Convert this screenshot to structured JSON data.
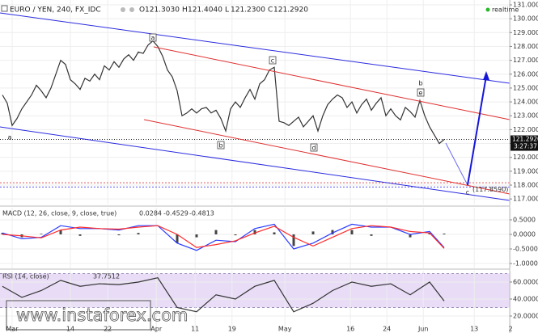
{
  "header": {
    "symbol": "EURO / YEN, 240, FX_IDC",
    "ohlc": [
      {
        "key": "O",
        "value": "121.3030"
      },
      {
        "key": "H",
        "value": "121.4040"
      },
      {
        "key": "L",
        "value": "121.2300"
      },
      {
        "key": "C",
        "value": "121.2920"
      }
    ],
    "realtime": "realtime",
    "countdown": "3:27:37",
    "watermark": "www.instaforex.com"
  },
  "waves": [
    "a",
    "a",
    "b",
    "c",
    "d",
    "b",
    "e",
    "c"
  ],
  "chart_data": [
    {
      "type": "line",
      "xlim": [
        0,
        105
      ],
      "ylim": [
        116.6,
        131.35
      ],
      "grid": true,
      "yticks": [
        {
          "value": 117,
          "label": "117.0000"
        },
        {
          "value": 118,
          "label": "118.0000"
        },
        {
          "value": 119,
          "label": "119.0000"
        },
        {
          "value": 120,
          "label": "120.0000"
        },
        {
          "value": 121,
          "label": "121.0000"
        },
        {
          "value": 122,
          "label": "122.0000"
        },
        {
          "value": 123,
          "label": "123.0000"
        },
        {
          "value": 124,
          "label": "124.0000"
        },
        {
          "value": 125,
          "label": "125.0000"
        },
        {
          "value": 126,
          "label": "126.0000"
        },
        {
          "value": 127,
          "label": "127.0000"
        },
        {
          "value": 128,
          "label": "128.0000"
        },
        {
          "value": 129,
          "label": "129.0000"
        },
        {
          "value": 130,
          "label": "130.0000"
        },
        {
          "value": 131,
          "label": "131.0000"
        }
      ],
      "series": [
        {
          "color": "#333333",
          "values": [
            124.5,
            123.9,
            122.3,
            122.8,
            123.5,
            124.0,
            124.5,
            125.2,
            124.8,
            124.3,
            125.0,
            126.0,
            127.0,
            126.7,
            125.6,
            125.3,
            124.9,
            125.7,
            125.5,
            126.0,
            125.6,
            126.6,
            126.3,
            126.9,
            126.5,
            127.1,
            127.4,
            127.0,
            127.6,
            127.5,
            128.1,
            128.4,
            128.0,
            127.3,
            126.3,
            125.8,
            124.8,
            123.0,
            123.2,
            123.5,
            123.2,
            123.5,
            123.6,
            123.2,
            123.4,
            122.8,
            121.9,
            123.5,
            124.0,
            123.6,
            124.3,
            124.9,
            124.2,
            125.3,
            125.6,
            126.3,
            126.5,
            122.6,
            122.5,
            122.3,
            122.6,
            122.9,
            122.2,
            122.6,
            123.0,
            121.9,
            123.0,
            123.8,
            124.2,
            124.5,
            124.3,
            123.6,
            124.0,
            123.2,
            123.8,
            124.2,
            123.4,
            123.9,
            124.3,
            123.0,
            123.5,
            123.0,
            122.7,
            123.6,
            123.3,
            122.9,
            124.1,
            123.0,
            122.2,
            121.6,
            121.0,
            121.292
          ]
        }
      ],
      "target": {
        "value": 117.859,
        "label": "(117.8590)",
        "color": "#5555ee"
      },
      "support_level": {
        "value": 118.17,
        "color": "#e05555"
      }
    },
    {
      "type": "line",
      "title": "MACD (12, 26, close, 9, close, true)",
      "xlim": [
        0,
        105
      ],
      "ylim": [
        -1.167,
        0.917
      ],
      "grid": true,
      "yticks": [
        {
          "value": -1,
          "label": "-1.0000"
        },
        {
          "value": -0.5,
          "label": "-0.5000"
        },
        {
          "value": 0,
          "label": "0.0000"
        },
        {
          "value": 0.5,
          "label": "0.5000"
        }
      ],
      "x": [
        0,
        4,
        8,
        12,
        16,
        20,
        24,
        28,
        32,
        36,
        40,
        44,
        48,
        52,
        56,
        60,
        64,
        68,
        72,
        76,
        80,
        84,
        88,
        91
      ],
      "histogram": {
        "color": "#444444",
        "values": [
          0.05,
          -0.1,
          0.02,
          0.15,
          -0.05,
          0.0,
          -0.03,
          0.05,
          0.0,
          -0.3,
          -0.1,
          0.15,
          -0.03,
          0.15,
          0.07,
          -0.4,
          0.1,
          0.15,
          0.15,
          -0.05,
          0.0,
          -0.1,
          0.05,
          0.0284
        ]
      },
      "series": [
        {
          "color": "#2b3cff",
          "values": [
            0.05,
            -0.15,
            -0.1,
            0.3,
            0.2,
            0.2,
            0.15,
            0.3,
            0.3,
            -0.3,
            -0.55,
            -0.2,
            -0.25,
            0.2,
            0.35,
            -0.5,
            -0.3,
            0.05,
            0.35,
            0.25,
            0.25,
            0.0,
            0.1,
            -0.4529
          ]
        },
        {
          "color": "#ff2b2b",
          "values": [
            0.0,
            -0.05,
            -0.12,
            0.15,
            0.25,
            0.2,
            0.18,
            0.25,
            0.3,
            0.0,
            -0.45,
            -0.35,
            -0.22,
            0.05,
            0.28,
            -0.1,
            -0.4,
            -0.1,
            0.2,
            0.3,
            0.25,
            0.1,
            0.05,
            -0.4813
          ]
        }
      ]
    },
    {
      "type": "line",
      "title": "RSI (14, close)",
      "xlim": [
        0,
        105
      ],
      "ylim": [
        0,
        73.3
      ],
      "grid": true,
      "bands": [
        30,
        70
      ],
      "yticks": [
        {
          "value": 20,
          "label": "20.0000"
        },
        {
          "value": 40,
          "label": "40.0000"
        },
        {
          "value": 60,
          "label": "60.0000"
        }
      ],
      "x": [
        0,
        4,
        8,
        12,
        16,
        20,
        24,
        28,
        32,
        36,
        40,
        44,
        48,
        52,
        56,
        60,
        64,
        68,
        72,
        76,
        80,
        84,
        88,
        91
      ],
      "series": [
        {
          "color": "#333333",
          "values": [
            55,
            42,
            50,
            62,
            55,
            58,
            57,
            60,
            65,
            30,
            25,
            45,
            40,
            55,
            62,
            25,
            35,
            50,
            60,
            55,
            58,
            45,
            60,
            37.7512
          ]
        }
      ],
      "xticks": [
        {
          "value": 2,
          "label": "Mar"
        },
        {
          "value": 14,
          "label": "14"
        },
        {
          "value": 21.7,
          "label": "22"
        },
        {
          "value": 31.7,
          "label": "Apr"
        },
        {
          "value": 39.7,
          "label": "11"
        },
        {
          "value": 47.3,
          "label": "19"
        },
        {
          "value": 58.2,
          "label": "May"
        },
        {
          "value": 71.7,
          "label": "16"
        },
        {
          "value": 79.2,
          "label": "24"
        },
        {
          "value": 86.7,
          "label": "Jun"
        },
        {
          "value": 97.2,
          "label": "13"
        },
        {
          "value": 104.7,
          "label": "2"
        }
      ]
    }
  ]
}
